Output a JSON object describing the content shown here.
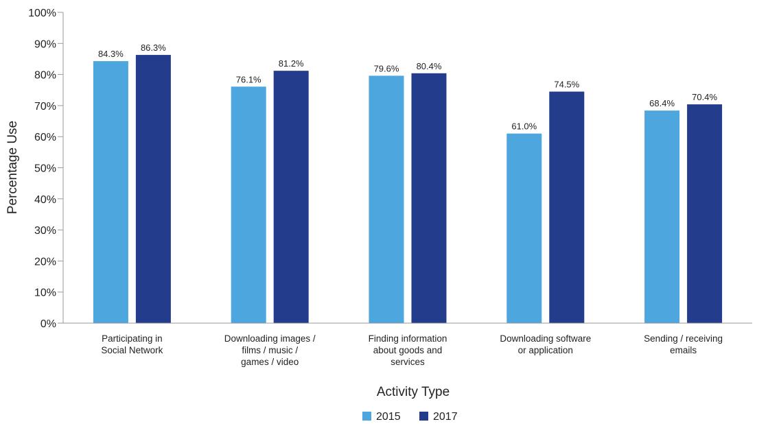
{
  "chart_data": {
    "type": "bar",
    "xlabel": "Activity Type",
    "ylabel": "Percentage Use",
    "ylim": [
      0,
      100
    ],
    "yticks": [
      "0%",
      "10%",
      "20%",
      "30%",
      "40%",
      "50%",
      "60%",
      "70%",
      "80%",
      "90%",
      "100%"
    ],
    "grid": false,
    "legend_position": "bottom",
    "categories": [
      [
        "Participating in",
        "Social Network"
      ],
      [
        "Downloading images /",
        "films / music /",
        "games / video"
      ],
      [
        "Finding information",
        "about goods and",
        "services"
      ],
      [
        "Downloading software",
        "or application"
      ],
      [
        "Sending / receiving",
        "emails"
      ]
    ],
    "series": [
      {
        "name": "2015",
        "color": "#4da6de",
        "values": [
          84.3,
          76.1,
          79.6,
          61.0,
          68.4
        ],
        "labels": [
          "84.3%",
          "76.1%",
          "79.6%",
          "61.0%",
          "68.4%"
        ]
      },
      {
        "name": "2017",
        "color": "#233c8c",
        "values": [
          86.3,
          81.2,
          80.4,
          74.5,
          70.4
        ],
        "labels": [
          "86.3%",
          "81.2%",
          "80.4%",
          "74.5%",
          "70.4%"
        ]
      }
    ]
  }
}
